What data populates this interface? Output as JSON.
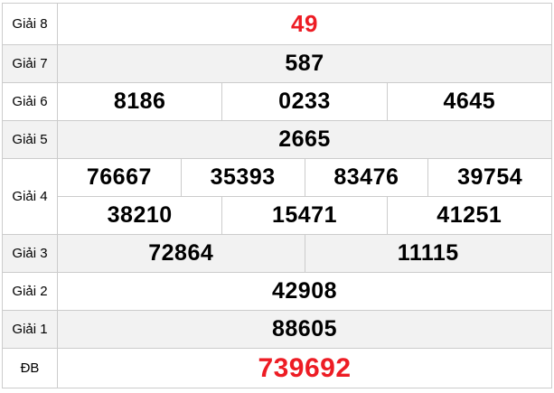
{
  "colors": {
    "highlight_red": "#ed1c24",
    "number_black": "#000000",
    "alt_row_bg": "#f2f2f2",
    "border": "#cccccc",
    "page_bg": "#ffffff"
  },
  "prize_table": {
    "rows": [
      {
        "label": "Giải 8",
        "numbers": [
          [
            "49"
          ]
        ]
      },
      {
        "label": "Giải 7",
        "numbers": [
          [
            "587"
          ]
        ]
      },
      {
        "label": "Giải 6",
        "numbers": [
          [
            "8186",
            "0233",
            "4645"
          ]
        ]
      },
      {
        "label": "Giải 5",
        "numbers": [
          [
            "2665"
          ]
        ]
      },
      {
        "label": "Giải 4",
        "numbers": [
          [
            "76667",
            "35393",
            "83476",
            "39754"
          ],
          [
            "38210",
            "15471",
            "41251"
          ]
        ]
      },
      {
        "label": "Giải 3",
        "numbers": [
          [
            "72864",
            "11115"
          ]
        ]
      },
      {
        "label": "Giải 2",
        "numbers": [
          [
            "42908"
          ]
        ]
      },
      {
        "label": "Giải 1",
        "numbers": [
          [
            "88605"
          ]
        ]
      },
      {
        "label": "ĐB",
        "numbers": [
          [
            "739692"
          ]
        ]
      }
    ]
  }
}
